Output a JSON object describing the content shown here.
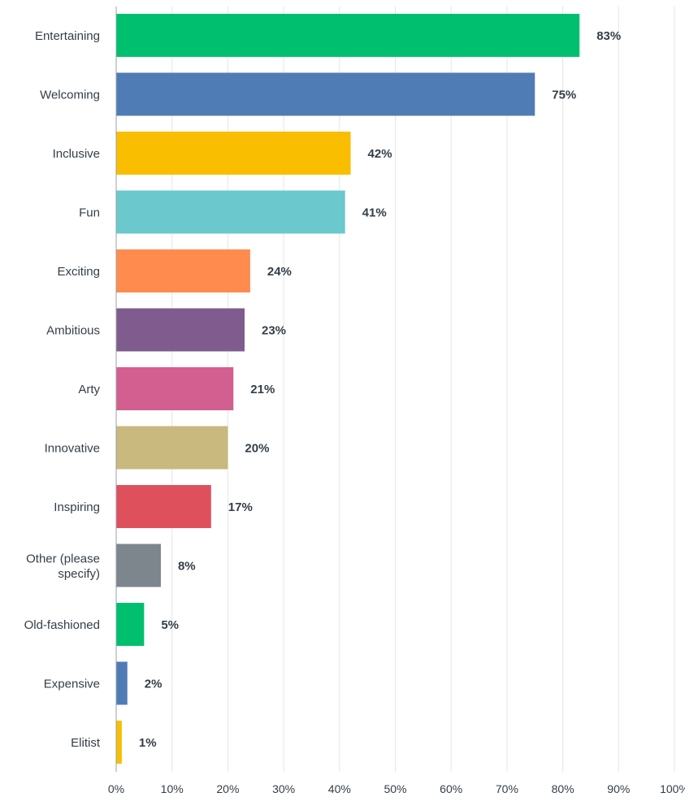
{
  "chart_data": {
    "type": "bar",
    "orientation": "horizontal",
    "title": "",
    "xlabel": "",
    "ylabel": "",
    "xlim": [
      0,
      100
    ],
    "grid": true,
    "value_format": "percent",
    "categories": [
      "Entertaining",
      "Welcoming",
      "Inclusive",
      "Fun",
      "Exciting",
      "Ambitious",
      "Arty",
      "Innovative",
      "Inspiring",
      "Other (please specify)",
      "Old-fashioned",
      "Expensive",
      "Elitist"
    ],
    "values": [
      83,
      75,
      42,
      41,
      24,
      23,
      21,
      20,
      17,
      8,
      5,
      2,
      1
    ],
    "value_labels": [
      "83%",
      "75%",
      "42%",
      "41%",
      "24%",
      "23%",
      "21%",
      "20%",
      "17%",
      "8%",
      "5%",
      "2%",
      "1%"
    ],
    "colors": [
      "#00bf6f",
      "#507cb6",
      "#f9be00",
      "#6bc8cd",
      "#ff8b4f",
      "#7f5b8e",
      "#d25f90",
      "#c9b97e",
      "#df505d",
      "#7d868c",
      "#00bf6f",
      "#507cb6",
      "#f9be00"
    ],
    "x_ticks": [
      "0%",
      "10%",
      "20%",
      "30%",
      "40%",
      "50%",
      "60%",
      "70%",
      "80%",
      "90%",
      "100%"
    ]
  }
}
